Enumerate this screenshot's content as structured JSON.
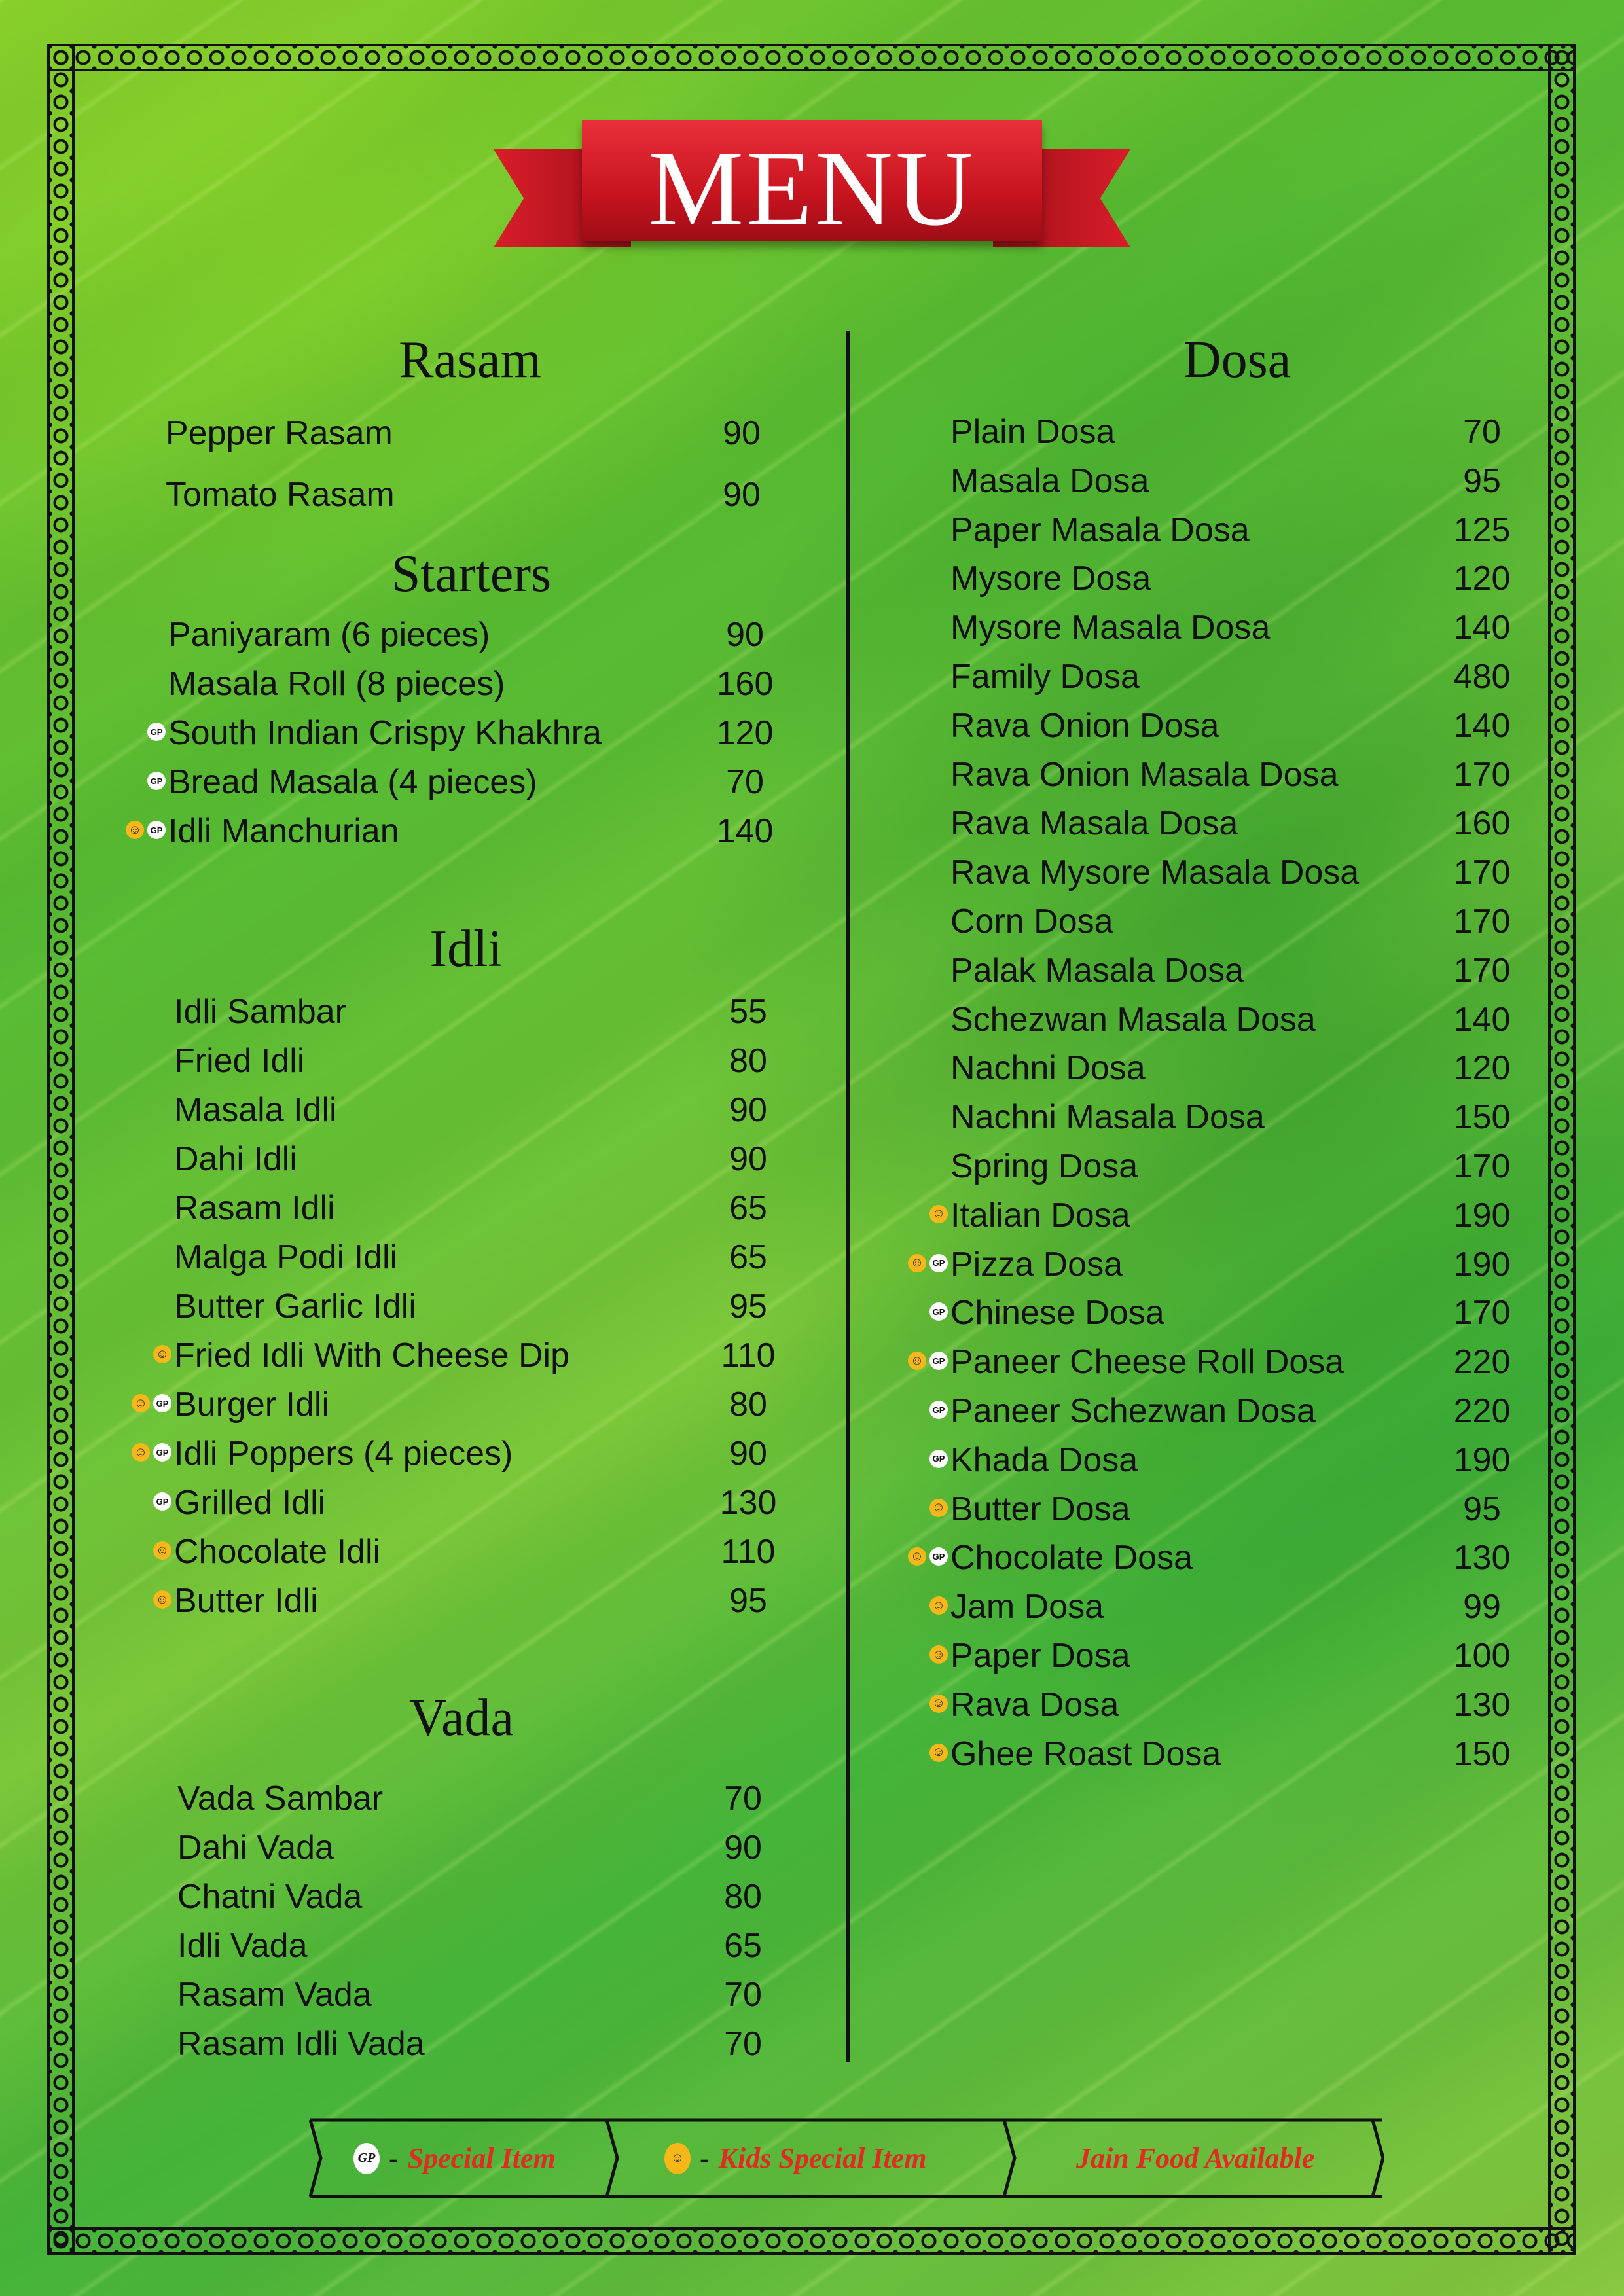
{
  "title": "MENU",
  "colors": {
    "banner": "#d81e2a",
    "legend_text": "#e02a22",
    "kids_icon": "#f6b719",
    "special_icon": "#ffffff"
  },
  "icons": {
    "kids": "smiley-icon",
    "special": "gp-badge-icon",
    "special_text": "GP",
    "kids_text": "☺"
  },
  "sections": [
    {
      "title": "Rasam",
      "items": [
        {
          "name": "Pepper Rasam",
          "price": "90",
          "icons": []
        },
        {
          "name": "Tomato Rasam",
          "price": "90",
          "icons": []
        }
      ]
    },
    {
      "title": "Starters",
      "items": [
        {
          "name": "Paniyaram (6 pieces)",
          "price": "90",
          "icons": []
        },
        {
          "name": "Masala Roll (8 pieces)",
          "price": "160",
          "icons": []
        },
        {
          "name": "South Indian Crispy Khakhra",
          "price": "120",
          "icons": [
            "special"
          ]
        },
        {
          "name": "Bread Masala (4 pieces)",
          "price": "70",
          "icons": [
            "special"
          ]
        },
        {
          "name": "Idli Manchurian",
          "price": "140",
          "icons": [
            "kids",
            "special"
          ]
        }
      ]
    },
    {
      "title": "Idli",
      "items": [
        {
          "name": "Idli Sambar",
          "price": "55",
          "icons": []
        },
        {
          "name": "Fried Idli",
          "price": "80",
          "icons": []
        },
        {
          "name": "Masala Idli",
          "price": "90",
          "icons": []
        },
        {
          "name": "Dahi Idli",
          "price": "90",
          "icons": []
        },
        {
          "name": "Rasam Idli",
          "price": "65",
          "icons": []
        },
        {
          "name": "Malga Podi Idli",
          "price": "65",
          "icons": []
        },
        {
          "name": "Butter Garlic Idli",
          "price": "95",
          "icons": []
        },
        {
          "name": "Fried Idli With Cheese Dip",
          "price": "110",
          "icons": [
            "kids"
          ]
        },
        {
          "name": "Burger Idli",
          "price": "80",
          "icons": [
            "kids",
            "special"
          ]
        },
        {
          "name": "Idli Poppers (4 pieces)",
          "price": "90",
          "icons": [
            "kids",
            "special"
          ]
        },
        {
          "name": "Grilled Idli",
          "price": "130",
          "icons": [
            "special"
          ]
        },
        {
          "name": "Chocolate Idli",
          "price": "110",
          "icons": [
            "kids"
          ]
        },
        {
          "name": "Butter Idli",
          "price": "95",
          "icons": [
            "kids"
          ]
        }
      ]
    },
    {
      "title": "Vada",
      "items": [
        {
          "name": "Vada Sambar",
          "price": "70",
          "icons": []
        },
        {
          "name": "Dahi Vada",
          "price": "90",
          "icons": []
        },
        {
          "name": "Chatni Vada",
          "price": "80",
          "icons": []
        },
        {
          "name": "Idli Vada",
          "price": "65",
          "icons": []
        },
        {
          "name": "Rasam Vada",
          "price": "70",
          "icons": []
        },
        {
          "name": "Rasam Idli Vada",
          "price": "70",
          "icons": []
        }
      ]
    },
    {
      "title": "Dosa",
      "items": [
        {
          "name": "Plain Dosa",
          "price": "70",
          "icons": []
        },
        {
          "name": "Masala Dosa",
          "price": "95",
          "icons": []
        },
        {
          "name": "Paper Masala Dosa",
          "price": "125",
          "icons": []
        },
        {
          "name": "Mysore Dosa",
          "price": "120",
          "icons": []
        },
        {
          "name": "Mysore Masala Dosa",
          "price": "140",
          "icons": []
        },
        {
          "name": "Family Dosa",
          "price": "480",
          "icons": []
        },
        {
          "name": "Rava Onion Dosa",
          "price": "140",
          "icons": []
        },
        {
          "name": "Rava Onion Masala Dosa",
          "price": "170",
          "icons": []
        },
        {
          "name": "Rava Masala Dosa",
          "price": "160",
          "icons": []
        },
        {
          "name": "Rava Mysore Masala Dosa",
          "price": "170",
          "icons": []
        },
        {
          "name": "Corn Dosa",
          "price": "170",
          "icons": []
        },
        {
          "name": "Palak Masala Dosa",
          "price": "170",
          "icons": []
        },
        {
          "name": "Schezwan Masala Dosa",
          "price": "140",
          "icons": []
        },
        {
          "name": "Nachni Dosa",
          "price": "120",
          "icons": []
        },
        {
          "name": "Nachni Masala Dosa",
          "price": "150",
          "icons": []
        },
        {
          "name": "Spring Dosa",
          "price": "170",
          "icons": []
        },
        {
          "name": "Italian Dosa",
          "price": "190",
          "icons": [
            "kids"
          ]
        },
        {
          "name": "Pizza Dosa",
          "price": "190",
          "icons": [
            "kids",
            "special"
          ]
        },
        {
          "name": "Chinese Dosa",
          "price": "170",
          "icons": [
            "special"
          ]
        },
        {
          "name": "Paneer Cheese Roll Dosa",
          "price": "220",
          "icons": [
            "kids",
            "special"
          ]
        },
        {
          "name": "Paneer Schezwan Dosa",
          "price": "220",
          "icons": [
            "special"
          ]
        },
        {
          "name": "Khada Dosa",
          "price": "190",
          "icons": [
            "special"
          ]
        },
        {
          "name": "Butter Dosa",
          "price": "95",
          "icons": [
            "kids"
          ]
        },
        {
          "name": "Chocolate Dosa",
          "price": "130",
          "icons": [
            "kids",
            "special"
          ]
        },
        {
          "name": "Jam Dosa",
          "price": "99",
          "icons": [
            "kids"
          ]
        },
        {
          "name": "Paper Dosa",
          "price": "100",
          "icons": [
            "kids"
          ]
        },
        {
          "name": "Rava Dosa",
          "price": "130",
          "icons": [
            "kids"
          ]
        },
        {
          "name": "Ghee Roast  Dosa",
          "price": "150",
          "icons": [
            "kids"
          ]
        }
      ]
    }
  ],
  "legend": {
    "special_badge": "GP",
    "dash": "-",
    "special_label": "Special Item",
    "kids_label": "Kids Special Item",
    "jain_label": "Jain Food Available"
  }
}
